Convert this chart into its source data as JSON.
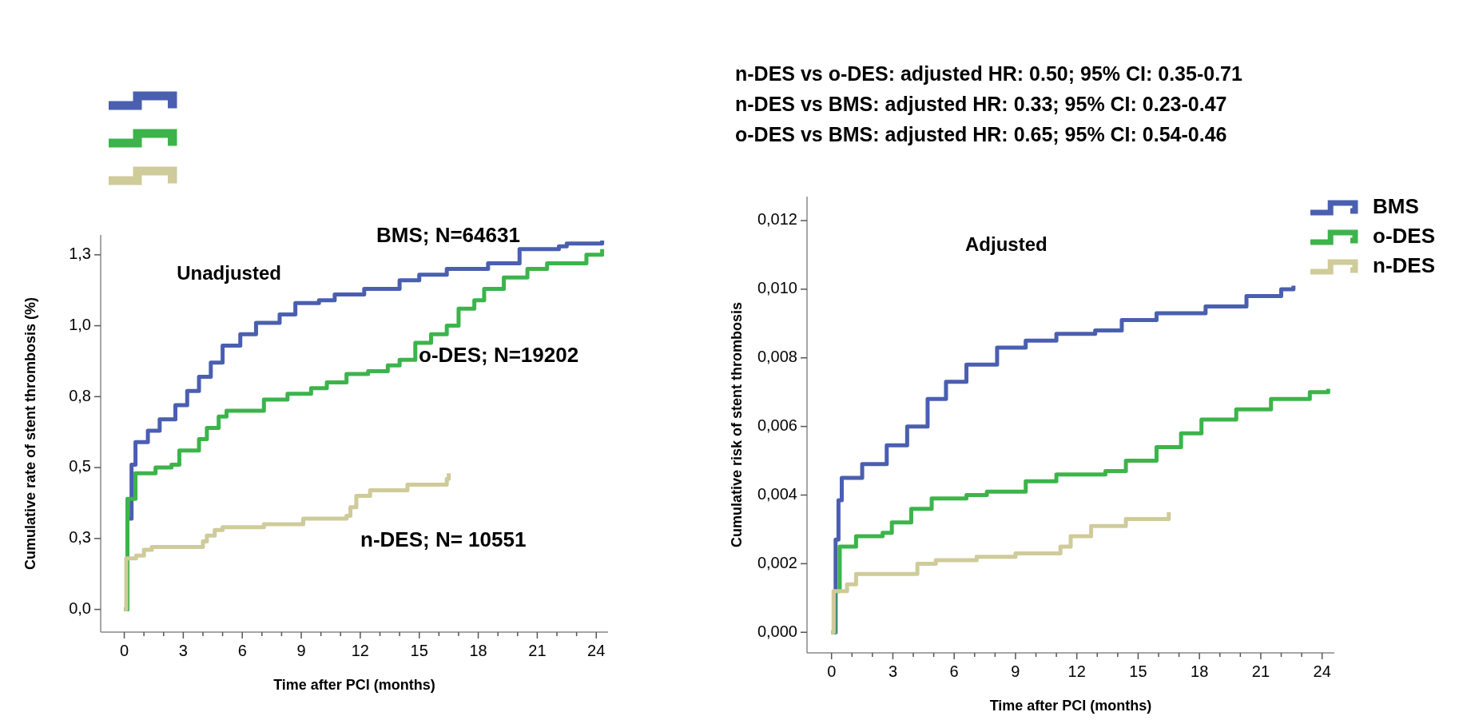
{
  "chart_data": [
    {
      "type": "step",
      "title": "Unadjusted",
      "xlabel": "Time after PCI (months)",
      "ylabel": "Cumulative rate of stent thrombosis (%)",
      "xlim": [
        -1.2,
        24.6
      ],
      "ylim": [
        -0.08,
        1.32
      ],
      "xticks": [
        0,
        {
          "value": 1,
          "label": null
        },
        {
          "value": 2,
          "label": null
        },
        3,
        {
          "value": 4,
          "label": null
        },
        {
          "value": 5,
          "label": null
        },
        6,
        {
          "value": 7,
          "label": null
        },
        {
          "value": 8,
          "label": null
        },
        9,
        {
          "value": 10,
          "label": null
        },
        {
          "value": 11,
          "label": null
        },
        12,
        {
          "value": 13,
          "label": null
        },
        {
          "value": 14,
          "label": null
        },
        15,
        {
          "value": 16,
          "label": null
        },
        {
          "value": 17,
          "label": null
        },
        18,
        {
          "value": 19,
          "label": null
        },
        {
          "value": 20,
          "label": null
        },
        21,
        {
          "value": 22,
          "label": null
        },
        {
          "value": 23,
          "label": null
        },
        24
      ],
      "yticks": [
        {
          "value": 0,
          "label": "0,0"
        },
        {
          "value": 0.25,
          "label": "0,3"
        },
        {
          "value": 0.5,
          "label": "0,5"
        },
        {
          "value": 0.75,
          "label": "0,8"
        },
        {
          "value": 1,
          "label": "1,0"
        },
        {
          "value": 1.25,
          "label": "1,3"
        }
      ],
      "legend": "top left",
      "grid": false,
      "annotations": [
        "BMS; N=64631",
        "o-DES; N=19202",
        "n-DES; N= 10551"
      ],
      "series": [
        {
          "color": "#4a5fb0",
          "x": [
            0,
            0.16,
            0.37,
            0.57,
            1.2,
            1.8,
            2.6,
            3.2,
            3.8,
            4.4,
            5.0,
            5.9,
            6.7,
            7.9,
            8.7,
            9.9,
            10.7,
            12.2,
            13.2,
            14,
            15,
            16.4,
            18.5,
            20.1,
            22.1,
            22.5,
            24.3
          ],
          "values": [
            0,
            0.32,
            0.51,
            0.59,
            0.63,
            0.67,
            0.72,
            0.77,
            0.82,
            0.87,
            0.93,
            0.97,
            1.01,
            1.04,
            1.08,
            1.09,
            1.11,
            1.13,
            1.13,
            1.16,
            1.18,
            1.2,
            1.22,
            1.27,
            1.28,
            1.29,
            1.3
          ]
        },
        {
          "color": "#3cb44b",
          "x": [
            0,
            0.16,
            0.57,
            1.59,
            2.4,
            2.8,
            3.8,
            4.2,
            4.8,
            5.2,
            6.1,
            7.1,
            8.3,
            9.5,
            10.3,
            11.3,
            12.4,
            13.4,
            14.0,
            14.8,
            15.6,
            16.4,
            17.0,
            17.8,
            18.3,
            19.3,
            20.5,
            21.5,
            23.3,
            23.5,
            24.3
          ],
          "values": [
            0,
            0.39,
            0.48,
            0.5,
            0.51,
            0.56,
            0.6,
            0.64,
            0.68,
            0.7,
            0.7,
            0.74,
            0.76,
            0.78,
            0.8,
            0.83,
            0.84,
            0.86,
            0.88,
            0.94,
            0.97,
            1.0,
            1.06,
            1.09,
            1.13,
            1.17,
            1.2,
            1.22,
            1.22,
            1.25,
            1.27
          ]
        },
        {
          "color": "#cfcb9a",
          "x": [
            0,
            0.1,
            0.6,
            1.0,
            1.4,
            4.0,
            4.2,
            4.6,
            5.0,
            7.1,
            9.1,
            11.3,
            11.5,
            11.8,
            12.5,
            14.4,
            16.4,
            16.5
          ],
          "values": [
            0,
            0.18,
            0.19,
            0.21,
            0.22,
            0.24,
            0.26,
            0.28,
            0.29,
            0.3,
            0.32,
            0.33,
            0.36,
            0.4,
            0.42,
            0.44,
            0.46,
            0.48
          ]
        }
      ]
    },
    {
      "type": "step",
      "title": "Adjusted",
      "xlabel": "Time after PCI (months)",
      "ylabel": "Cumulative risk of stent thrombosis",
      "xlim": [
        -1.2,
        24.6
      ],
      "ylim": [
        -0.0006,
        0.0127
      ],
      "xticks": [
        0,
        {
          "value": 1,
          "label": null
        },
        {
          "value": 2,
          "label": null
        },
        3,
        {
          "value": 4,
          "label": null
        },
        {
          "value": 5,
          "label": null
        },
        6,
        {
          "value": 7,
          "label": null
        },
        {
          "value": 8,
          "label": null
        },
        9,
        {
          "value": 10,
          "label": null
        },
        {
          "value": 11,
          "label": null
        },
        12,
        {
          "value": 13,
          "label": null
        },
        {
          "value": 14,
          "label": null
        },
        15,
        {
          "value": 16,
          "label": null
        },
        {
          "value": 17,
          "label": null
        },
        18,
        {
          "value": 19,
          "label": null
        },
        {
          "value": 20,
          "label": null
        },
        21,
        {
          "value": 22,
          "label": null
        },
        {
          "value": 23,
          "label": null
        },
        24
      ],
      "yticks": [
        {
          "value": 0,
          "label": "0,000"
        },
        {
          "value": 0.002,
          "label": "0,002"
        },
        {
          "value": 0.004,
          "label": "0,004"
        },
        {
          "value": 0.006,
          "label": "0,006"
        },
        {
          "value": 0.008,
          "label": "0,008"
        },
        {
          "value": 0.01,
          "label": "0,010"
        },
        {
          "value": 0.012,
          "label": "0,012"
        }
      ],
      "legend": "top right",
      "grid": false,
      "annotations": [
        "n-DES vs o-DES: adjusted HR: 0.50; 95% CI: 0.35-0.71",
        "n-DES vs BMS: adjusted HR: 0.33; 95% CI: 0.23-0.47",
        "o-DES vs BMS: adjusted HR: 0.65; 95% CI: 0.54-0.46"
      ],
      "series": [
        {
          "name": "BMS",
          "color": "#4a5fb0",
          "x": [
            0,
            0.2,
            0.34,
            0.5,
            1.5,
            2.7,
            3.7,
            4.7,
            5.6,
            6.6,
            8.1,
            9.5,
            11,
            12.9,
            14.2,
            15.9,
            18.3,
            20.3,
            22,
            22.6
          ],
          "values": [
            0,
            0.0027,
            0.00385,
            0.0045,
            0.0049,
            0.00545,
            0.006,
            0.0068,
            0.0073,
            0.0078,
            0.0083,
            0.0085,
            0.0087,
            0.0088,
            0.0091,
            0.0093,
            0.0095,
            0.0098,
            0.01,
            0.0101
          ]
        },
        {
          "name": "o-DES",
          "color": "#3cb44b",
          "x": [
            0,
            0.15,
            0.4,
            1.2,
            2.5,
            2.95,
            3.9,
            4.9,
            6.6,
            7.6,
            9.5,
            11,
            13.4,
            14.4,
            15.9,
            17.1,
            18.1,
            19.8,
            21.5,
            23.2,
            23.4,
            24.3
          ],
          "values": [
            0,
            0.0012,
            0.0025,
            0.0028,
            0.0029,
            0.0032,
            0.0036,
            0.0039,
            0.004,
            0.0041,
            0.0044,
            0.0046,
            0.0047,
            0.005,
            0.0054,
            0.0058,
            0.0062,
            0.0065,
            0.0068,
            0.0068,
            0.007,
            0.0071
          ]
        },
        {
          "name": "n-DES",
          "color": "#cfcb9a",
          "x": [
            0,
            0.1,
            0.76,
            1.2,
            3.2,
            4.2,
            5.1,
            7.1,
            9,
            11.2,
            11.7,
            12.7,
            14.4,
            16.4,
            16.5
          ],
          "values": [
            0,
            0.0012,
            0.0014,
            0.0017,
            0.0017,
            0.002,
            0.0021,
            0.0022,
            0.0023,
            0.0025,
            0.0028,
            0.0031,
            0.0033,
            0.0033,
            0.0035
          ]
        }
      ]
    }
  ]
}
